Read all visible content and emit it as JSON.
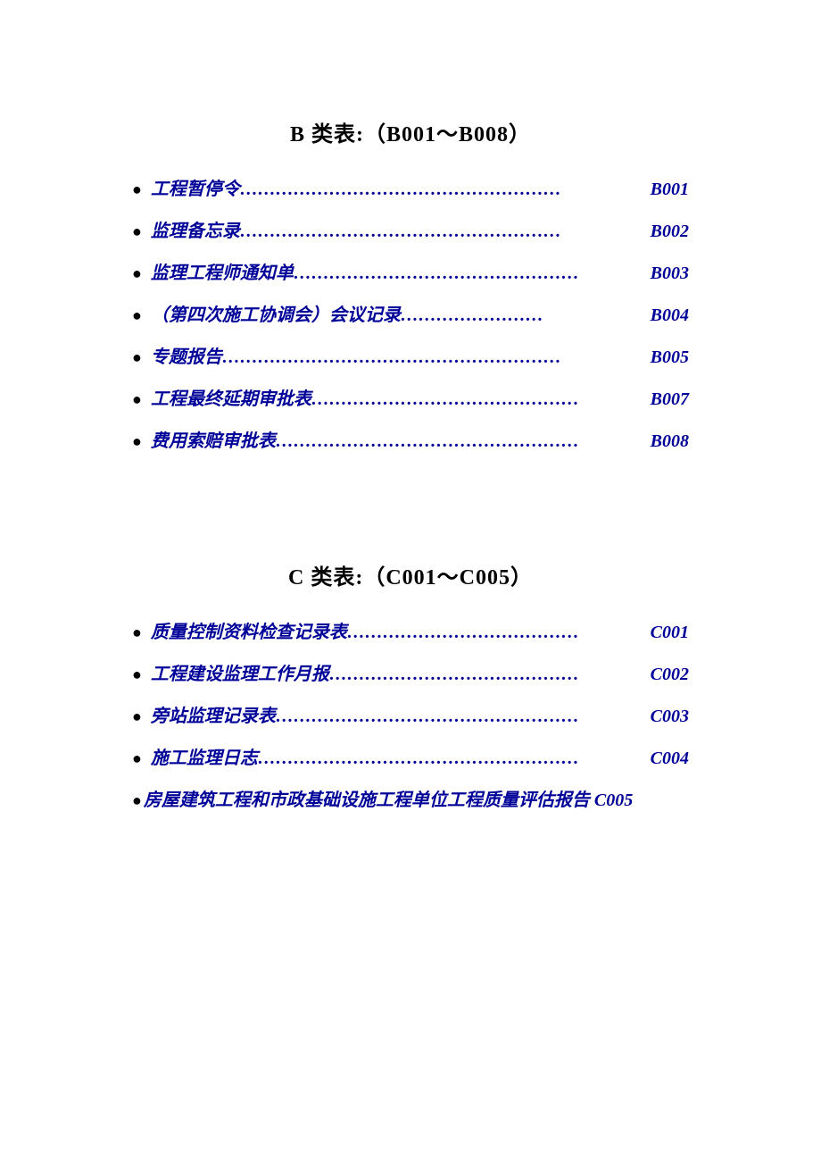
{
  "sections": [
    {
      "title": "B 类表:（B001～B008）",
      "items": [
        {
          "label": "工程暂停令",
          "code": "B001",
          "hasDots": true
        },
        {
          "label": "监理备忘录",
          "code": "B002",
          "hasDots": true
        },
        {
          "label": "监理工程师通知单",
          "code": "B003",
          "hasDots": true
        },
        {
          "label": "（第四次施工协调会）会议记录",
          "code": "B004",
          "hasDots": true
        },
        {
          "label": "专题报告",
          "code": "B005",
          "hasDots": true
        },
        {
          "label": "工程最终延期审批表",
          "code": "B007",
          "hasDots": true
        },
        {
          "label": "费用索赔审批表",
          "code": "B008",
          "hasDots": true
        }
      ]
    },
    {
      "title": "C 类表:（C001～C005）",
      "items": [
        {
          "label": "质量控制资料检查记录表",
          "code": "C001",
          "hasDots": true
        },
        {
          "label": "工程建设监理工作月报",
          "code": "C002",
          "hasDots": true
        },
        {
          "label": "旁站监理记录表",
          "code": "C003",
          "hasDots": true
        },
        {
          "label": "施工监理日志",
          "code": "C004",
          "hasDots": true
        },
        {
          "label": "房屋建筑工程和市政基础设施工程单位工程质量评估报告",
          "code": "C005",
          "hasDots": false
        }
      ]
    }
  ],
  "style": {
    "link_color": "#000099",
    "bullet_color": "#000000",
    "title_color": "#000000",
    "background_color": "#ffffff",
    "bullet_char": "●",
    "dots_char": "…"
  }
}
